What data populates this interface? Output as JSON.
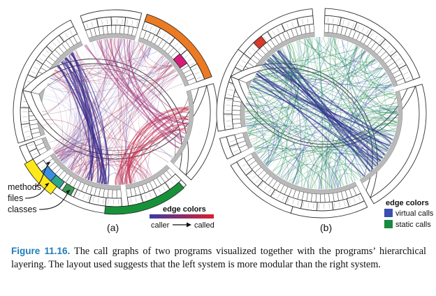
{
  "figure": {
    "panel_a_label": "(a)",
    "panel_b_label": "(b)",
    "annotations": {
      "methods": "methods",
      "files": "files",
      "classes": "classes"
    },
    "legend_a": {
      "title": "edge colors",
      "from": "caller",
      "to": "called",
      "gradient_start": "#3a3aa6",
      "gradient_end": "#d8202c"
    },
    "legend_b": {
      "title": "edge colors",
      "items": [
        {
          "label": "virtual calls",
          "color": "#3b4fb0"
        },
        {
          "label": "static calls",
          "color": "#1a8a3e"
        }
      ]
    },
    "highlight_colors": {
      "orange": "#ec7a22",
      "green": "#18923a",
      "yellow": "#ffe81a",
      "teal": "#2fa58a",
      "blue": "#3a8ee0",
      "magenta": "#d81b7a",
      "red": "#d83a2c"
    }
  },
  "caption": {
    "number": "Figure 11.16.",
    "text": "The call graphs of two programs visualized together with the programs’ hierarchical layering. The layout used suggests that the left system is more modular than the right system."
  }
}
